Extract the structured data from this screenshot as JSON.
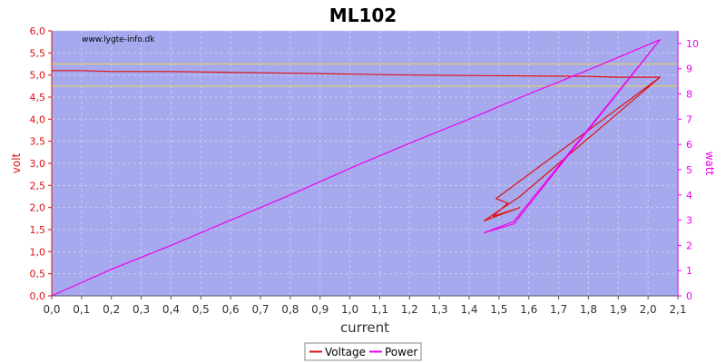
{
  "colors": {
    "plot_background": "#a7a9ef",
    "grid": "#c8c9f3",
    "voltage": "#dd1111",
    "power": "#ee00ee",
    "reference_lines": "#e8d84a",
    "left_axis": "#dd1111",
    "right_axis": "#ee00ee"
  },
  "chart_data": {
    "type": "line",
    "title": "ML102",
    "watermark": "www.lygte-info.dk",
    "xlabel": "current",
    "ylabel_left": "volt",
    "ylabel_right": "watt",
    "xlim": [
      0,
      2.1
    ],
    "ylim_left": [
      0,
      6
    ],
    "ylim_right": [
      0,
      10.5
    ],
    "x_ticks": [
      "0,0",
      "0,1",
      "0,2",
      "0,3",
      "0,4",
      "0,5",
      "0,6",
      "0,7",
      "0,8",
      "0,9",
      "1,0",
      "1,1",
      "1,2",
      "1,3",
      "1,4",
      "1,5",
      "1,6",
      "1,7",
      "1,8",
      "1,9",
      "2,0",
      "2,1"
    ],
    "y_left_ticks": [
      "0,0",
      "0,5",
      "1,0",
      "1,5",
      "2,0",
      "2,5",
      "3,0",
      "3,5",
      "4,0",
      "4,5",
      "5,0",
      "5,5",
      "6,0"
    ],
    "y_right_ticks": [
      "0",
      "1",
      "2",
      "3",
      "4",
      "5",
      "6",
      "7",
      "8",
      "9",
      "10"
    ],
    "grid": true,
    "legend_position": "bottom-center",
    "reference_lines_left": [
      5.25,
      4.75
    ],
    "series": [
      {
        "name": "Voltage",
        "axis": "left",
        "x": [
          0,
          0.1,
          0.2,
          0.4,
          0.7,
          1.0,
          1.2,
          1.4,
          1.6,
          1.8,
          1.9,
          2.04,
          1.57,
          1.45,
          1.57,
          1.48,
          1.53,
          1.49,
          2.04
        ],
        "y": [
          5.1,
          5.1,
          5.08,
          5.08,
          5.05,
          5.02,
          5.0,
          4.99,
          4.98,
          4.97,
          4.95,
          4.95,
          2.25,
          1.7,
          2.0,
          1.8,
          2.1,
          2.2,
          4.95
        ]
      },
      {
        "name": "Power",
        "axis": "right",
        "x": [
          0,
          0.2,
          0.4,
          0.6,
          0.8,
          1.0,
          1.2,
          1.4,
          1.6,
          1.8,
          1.9,
          2.04,
          1.55,
          1.45,
          1.55,
          2.04
        ],
        "y": [
          0,
          1.05,
          2.0,
          3.0,
          4.0,
          5.05,
          6.05,
          7.0,
          8.0,
          8.95,
          9.45,
          10.15,
          2.95,
          2.5,
          2.85,
          10.15
        ]
      }
    ]
  }
}
